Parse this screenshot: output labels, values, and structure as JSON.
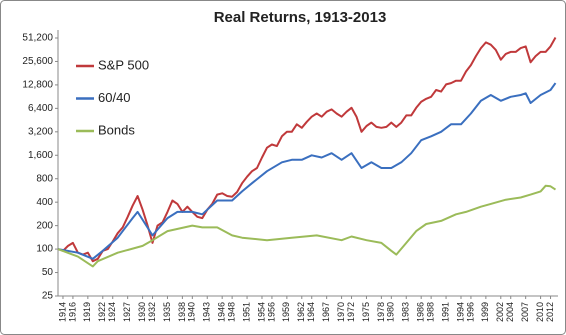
{
  "chart_data": {
    "type": "line",
    "title": "Real Returns, 1913-2013",
    "log_scale_y": true,
    "grid": false,
    "legend_position": "upper left",
    "xlim": [
      1913,
      2013.5
    ],
    "xticks": [
      1914,
      1916,
      1919,
      1922,
      1924,
      1927,
      1930,
      1932,
      1935,
      1938,
      1940,
      1943,
      1946,
      1948,
      1951,
      1954,
      1956,
      1959,
      1962,
      1964,
      1967,
      1970,
      1972,
      1975,
      1978,
      1980,
      1983,
      1986,
      1988,
      1991,
      1994,
      1996,
      1999,
      2002,
      2004,
      2007,
      2010,
      2012
    ],
    "ylim": [
      25,
      51200
    ],
    "yticks": [
      25,
      50,
      100,
      200,
      400,
      800,
      {
        "value": 1600,
        "label": "1,600"
      },
      {
        "value": 3200,
        "label": "3,200"
      },
      {
        "value": 6400,
        "label": "6,400"
      },
      {
        "value": 12800,
        "label": "12,800"
      },
      {
        "value": 25600,
        "label": "25,600"
      },
      {
        "value": 51200,
        "label": "51,200"
      }
    ],
    "series": [
      {
        "name": "S&P 500",
        "color": "#c0393b",
        "x": [
          1913,
          1914,
          1915,
          1916,
          1917,
          1918,
          1919,
          1920,
          1921,
          1922,
          1923,
          1924,
          1925,
          1926,
          1927,
          1928,
          1929,
          1930,
          1931,
          1932,
          1933,
          1934,
          1935,
          1936,
          1937,
          1938,
          1939,
          1940,
          1941,
          1942,
          1943,
          1944,
          1945,
          1946,
          1947,
          1948,
          1949,
          1950,
          1951,
          1952,
          1953,
          1954,
          1955,
          1956,
          1957,
          1958,
          1959,
          1960,
          1961,
          1962,
          1963,
          1964,
          1965,
          1966,
          1967,
          1968,
          1969,
          1970,
          1971,
          1972,
          1973,
          1974,
          1975,
          1976,
          1977,
          1978,
          1979,
          1980,
          1981,
          1982,
          1983,
          1984,
          1985,
          1986,
          1987,
          1988,
          1989,
          1990,
          1991,
          1992,
          1993,
          1994,
          1995,
          1996,
          1997,
          1998,
          1999,
          2000,
          2001,
          2002,
          2003,
          2004,
          2005,
          2006,
          2007,
          2008,
          2009,
          2010,
          2011,
          2012,
          2013
        ],
        "values": [
          100,
          95,
          110,
          120,
          90,
          85,
          90,
          70,
          75,
          95,
          100,
          125,
          160,
          190,
          260,
          360,
          480,
          320,
          200,
          120,
          200,
          220,
          300,
          420,
          380,
          300,
          350,
          300,
          260,
          250,
          320,
          380,
          500,
          520,
          480,
          470,
          540,
          700,
          850,
          1000,
          1100,
          1500,
          2000,
          2200,
          2100,
          2800,
          3200,
          3200,
          4000,
          3600,
          4300,
          5000,
          5500,
          5000,
          5800,
          6200,
          5500,
          5000,
          5800,
          6500,
          5000,
          3200,
          3800,
          4200,
          3700,
          3600,
          3700,
          4200,
          3700,
          4200,
          5200,
          5200,
          6500,
          7800,
          8500,
          9000,
          11000,
          10500,
          13000,
          13500,
          14500,
          14500,
          19000,
          23000,
          30000,
          38000,
          45000,
          42000,
          36000,
          27000,
          32000,
          34000,
          34000,
          38000,
          40000,
          25000,
          30000,
          34000,
          34000,
          40000,
          52000
        ]
      },
      {
        "name": "60/40",
        "color": "#3a6fbf",
        "x": [
          1913,
          1917,
          1920,
          1922,
          1925,
          1928,
          1929,
          1932,
          1935,
          1937,
          1940,
          1942,
          1945,
          1948,
          1950,
          1952,
          1955,
          1958,
          1960,
          1962,
          1964,
          1966,
          1968,
          1970,
          1972,
          1974,
          1976,
          1978,
          1980,
          1982,
          1984,
          1986,
          1988,
          1990,
          1992,
          1994,
          1996,
          1998,
          2000,
          2002,
          2004,
          2006,
          2007,
          2008,
          2010,
          2012,
          2013
        ],
        "values": [
          100,
          90,
          75,
          95,
          140,
          250,
          300,
          150,
          250,
          300,
          300,
          280,
          420,
          420,
          550,
          700,
          1000,
          1300,
          1400,
          1400,
          1600,
          1500,
          1700,
          1400,
          1700,
          1100,
          1300,
          1100,
          1100,
          1300,
          1700,
          2500,
          2800,
          3200,
          4000,
          4000,
          5500,
          8000,
          9500,
          8000,
          9000,
          9500,
          10000,
          7500,
          9500,
          11000,
          13500
        ]
      },
      {
        "name": "Bonds",
        "color": "#9bbb59",
        "x": [
          1913,
          1917,
          1920,
          1921,
          1925,
          1930,
          1932,
          1935,
          1940,
          1942,
          1945,
          1948,
          1950,
          1955,
          1960,
          1965,
          1970,
          1972,
          1975,
          1978,
          1980,
          1981,
          1983,
          1985,
          1987,
          1990,
          1993,
          1995,
          1998,
          2000,
          2003,
          2006,
          2008,
          2010,
          2011,
          2012,
          2013
        ],
        "values": [
          100,
          80,
          60,
          70,
          90,
          110,
          130,
          170,
          200,
          190,
          190,
          150,
          140,
          130,
          140,
          150,
          130,
          145,
          130,
          120,
          95,
          85,
          120,
          170,
          210,
          230,
          280,
          300,
          350,
          380,
          430,
          460,
          500,
          550,
          650,
          640,
          580
        ]
      }
    ]
  }
}
